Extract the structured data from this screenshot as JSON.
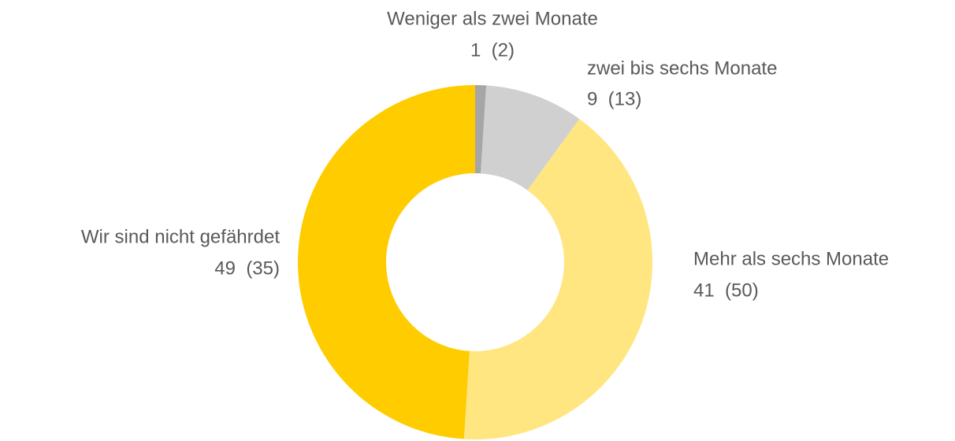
{
  "chart_data": {
    "type": "donut",
    "categories": [
      "Weniger als zwei Monate",
      "zwei bis sechs Monate",
      "Mehr als sechs Monate",
      "Wir sind nicht gefährdet"
    ],
    "values": [
      1,
      9,
      41,
      49
    ],
    "value_labels": [
      "1  (2)",
      "9  (13)",
      "41  (50)",
      "49  (35)"
    ],
    "colors": [
      "#a6a6a6",
      "#d0d0d0",
      "#ffe680",
      "#ffcc00"
    ]
  }
}
